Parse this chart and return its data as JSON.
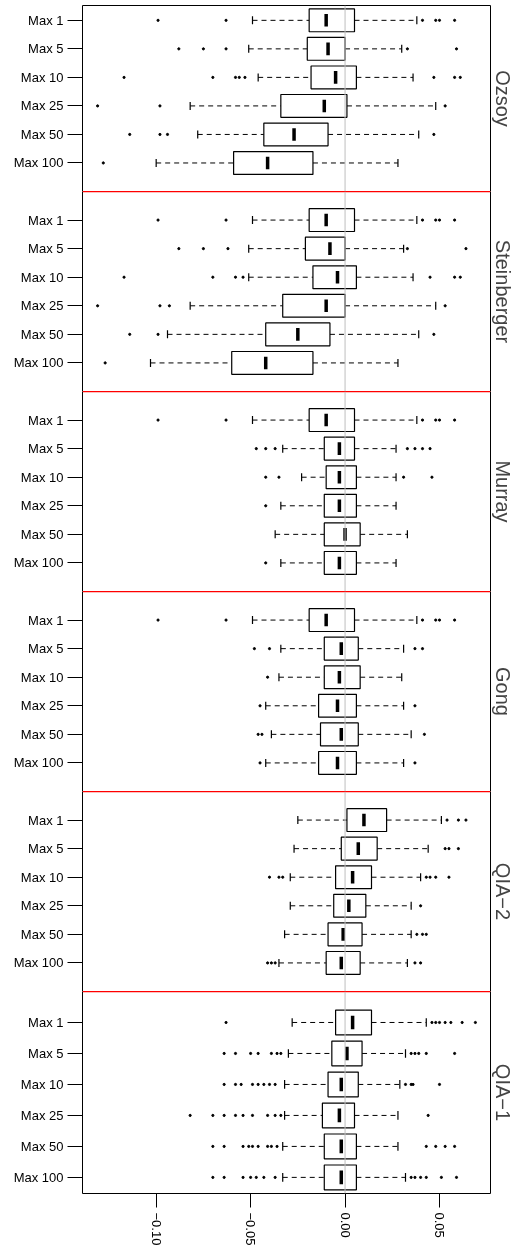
{
  "chart_data": [
    {
      "type": "box",
      "orientation": "horizontal",
      "title": "Ozsoy",
      "categories": [
        "Max 1",
        "Max 5",
        "Max 10",
        "Max 25",
        "Max 50",
        "Max 100"
      ],
      "xlim": [
        -0.139,
        0.077
      ],
      "tick_labels": "y",
      "ref_lines": [
        {
          "axis": "x",
          "value": 0,
          "color": "#bebebe"
        }
      ],
      "boxes": [
        {
          "low": -0.049,
          "q1": -0.019,
          "median": -0.01,
          "q3": 0.005,
          "high": 0.038,
          "outliers": [
            -0.099,
            -0.063,
            0.041,
            0.048,
            0.05,
            0.058
          ]
        },
        {
          "low": -0.051,
          "q1": -0.02,
          "median": -0.009,
          "q3": 0.0,
          "high": 0.03,
          "outliers": [
            -0.088,
            -0.075,
            -0.063,
            0.033,
            0.059
          ]
        },
        {
          "low": -0.046,
          "q1": -0.018,
          "median": -0.005,
          "q3": 0.006,
          "high": 0.036,
          "outliers": [
            -0.117,
            -0.07,
            -0.058,
            -0.056,
            -0.053,
            0.047,
            0.058,
            0.061
          ]
        },
        {
          "low": -0.082,
          "q1": -0.034,
          "median": -0.011,
          "q3": 0.001,
          "high": 0.048,
          "outliers": [
            -0.131,
            -0.098,
            0.053
          ]
        },
        {
          "low": -0.078,
          "q1": -0.043,
          "median": -0.027,
          "q3": -0.009,
          "high": 0.039,
          "outliers": [
            -0.114,
            -0.098,
            -0.094,
            0.047
          ]
        },
        {
          "low": -0.1,
          "q1": -0.059,
          "median": -0.041,
          "q3": -0.017,
          "high": 0.028,
          "outliers": [
            -0.128
          ]
        }
      ]
    },
    {
      "type": "box",
      "orientation": "horizontal",
      "title": "Steinberger",
      "categories": [
        "Max 1",
        "Max 5",
        "Max 10",
        "Max 25",
        "Max 50",
        "Max 100"
      ],
      "xlim": [
        -0.139,
        0.077
      ],
      "tick_labels": "y",
      "ref_lines": [
        {
          "axis": "x",
          "value": 0,
          "color": "#bebebe"
        }
      ],
      "boxes": [
        {
          "low": -0.049,
          "q1": -0.019,
          "median": -0.01,
          "q3": 0.005,
          "high": 0.038,
          "outliers": [
            -0.099,
            -0.063,
            0.041,
            0.048,
            0.05,
            0.058
          ]
        },
        {
          "low": -0.051,
          "q1": -0.021,
          "median": -0.008,
          "q3": 0.0,
          "high": 0.031,
          "outliers": [
            -0.088,
            -0.075,
            -0.062,
            0.033,
            0.064
          ]
        },
        {
          "low": -0.051,
          "q1": -0.017,
          "median": -0.004,
          "q3": 0.006,
          "high": 0.036,
          "outliers": [
            -0.117,
            -0.07,
            -0.058,
            -0.054,
            0.045,
            0.058,
            0.061
          ]
        },
        {
          "low": -0.082,
          "q1": -0.033,
          "median": -0.01,
          "q3": 0.0,
          "high": 0.048,
          "outliers": [
            -0.131,
            -0.098,
            -0.093,
            0.053
          ]
        },
        {
          "low": -0.094,
          "q1": -0.042,
          "median": -0.025,
          "q3": -0.008,
          "high": 0.039,
          "outliers": [
            -0.114,
            -0.099,
            0.047
          ]
        },
        {
          "low": -0.103,
          "q1": -0.06,
          "median": -0.042,
          "q3": -0.017,
          "high": 0.028,
          "outliers": [
            -0.127
          ]
        }
      ]
    },
    {
      "type": "box",
      "orientation": "horizontal",
      "title": "Murray",
      "categories": [
        "Max 1",
        "Max 5",
        "Max 10",
        "Max 25",
        "Max 50",
        "Max 100"
      ],
      "xlim": [
        -0.139,
        0.077
      ],
      "tick_labels": "y",
      "ref_lines": [
        {
          "axis": "x",
          "value": 0,
          "color": "#bebebe"
        }
      ],
      "boxes": [
        {
          "low": -0.049,
          "q1": -0.019,
          "median": -0.01,
          "q3": 0.005,
          "high": 0.038,
          "outliers": [
            -0.099,
            -0.063,
            0.041,
            0.048,
            0.05,
            0.058
          ]
        },
        {
          "low": -0.033,
          "q1": -0.011,
          "median": -0.003,
          "q3": 0.005,
          "high": 0.027,
          "outliers": [
            -0.047,
            -0.042,
            -0.037,
            0.033,
            0.037,
            0.041,
            0.045
          ]
        },
        {
          "low": -0.023,
          "q1": -0.01,
          "median": -0.003,
          "q3": 0.006,
          "high": 0.027,
          "outliers": [
            -0.042,
            -0.035,
            0.031,
            0.046
          ]
        },
        {
          "low": -0.034,
          "q1": -0.011,
          "median": -0.003,
          "q3": 0.006,
          "high": 0.027,
          "outliers": [
            -0.042
          ]
        },
        {
          "low": -0.037,
          "q1": -0.011,
          "median": 0.0,
          "q3": 0.008,
          "high": 0.033
        },
        {
          "low": -0.034,
          "q1": -0.011,
          "median": -0.003,
          "q3": 0.006,
          "high": 0.027,
          "outliers": [
            -0.042
          ]
        }
      ]
    },
    {
      "type": "box",
      "orientation": "horizontal",
      "title": "Gong",
      "categories": [
        "Max 1",
        "Max 5",
        "Max 10",
        "Max 25",
        "Max 50",
        "Max 100"
      ],
      "xlim": [
        -0.139,
        0.077
      ],
      "tick_labels": "y",
      "ref_lines": [
        {
          "axis": "x",
          "value": 0,
          "color": "#bebebe"
        }
      ],
      "boxes": [
        {
          "low": -0.049,
          "q1": -0.019,
          "median": -0.01,
          "q3": 0.005,
          "high": 0.038,
          "outliers": [
            -0.099,
            -0.063,
            0.041,
            0.048,
            0.05,
            0.058
          ]
        },
        {
          "low": -0.034,
          "q1": -0.011,
          "median": -0.002,
          "q3": 0.007,
          "high": 0.031,
          "outliers": [
            -0.048,
            -0.04,
            0.037,
            0.041
          ]
        },
        {
          "low": -0.035,
          "q1": -0.011,
          "median": -0.003,
          "q3": 0.008,
          "high": 0.03,
          "outliers": [
            -0.041
          ]
        },
        {
          "low": -0.042,
          "q1": -0.014,
          "median": -0.004,
          "q3": 0.006,
          "high": 0.031,
          "outliers": [
            -0.045,
            0.037
          ]
        },
        {
          "low": -0.039,
          "q1": -0.013,
          "median": -0.002,
          "q3": 0.007,
          "high": 0.035,
          "outliers": [
            -0.046,
            -0.044,
            0.042
          ]
        },
        {
          "low": -0.042,
          "q1": -0.014,
          "median": -0.004,
          "q3": 0.006,
          "high": 0.031,
          "outliers": [
            -0.045,
            0.037
          ]
        }
      ]
    },
    {
      "type": "box",
      "orientation": "horizontal",
      "title": "QIA−2",
      "categories": [
        "Max 1",
        "Max 5",
        "Max 10",
        "Max 25",
        "Max 50",
        "Max 100"
      ],
      "xlim": [
        -0.139,
        0.077
      ],
      "tick_labels": "y",
      "ref_lines": [
        {
          "axis": "x",
          "value": 0,
          "color": "#bebebe"
        }
      ],
      "boxes": [
        {
          "low": -0.025,
          "q1": 0.001,
          "median": 0.01,
          "q3": 0.022,
          "high": 0.051,
          "outliers": [
            0.054,
            0.06,
            0.064
          ]
        },
        {
          "low": -0.027,
          "q1": -0.002,
          "median": 0.007,
          "q3": 0.017,
          "high": 0.044,
          "outliers": [
            0.053,
            0.055,
            0.06
          ]
        },
        {
          "low": -0.029,
          "q1": -0.005,
          "median": 0.004,
          "q3": 0.014,
          "high": 0.04,
          "outliers": [
            -0.04,
            -0.035,
            -0.033,
            0.043,
            0.045,
            0.048,
            0.055
          ]
        },
        {
          "low": -0.029,
          "q1": -0.006,
          "median": 0.002,
          "q3": 0.011,
          "high": 0.035,
          "outliers": [
            0.04
          ]
        },
        {
          "low": -0.032,
          "q1": -0.009,
          "median": -0.001,
          "q3": 0.009,
          "high": 0.035,
          "outliers": [
            0.038,
            0.041,
            0.043
          ]
        },
        {
          "low": -0.035,
          "q1": -0.01,
          "median": -0.002,
          "q3": 0.008,
          "high": 0.033,
          "outliers": [
            -0.041,
            -0.039,
            -0.037,
            0.037,
            0.04
          ]
        }
      ]
    },
    {
      "type": "box",
      "orientation": "horizontal",
      "title": "QIA−1",
      "categories": [
        "Max 1",
        "Max 5",
        "Max 10",
        "Max 25",
        "Max 50",
        "Max 100"
      ],
      "xlim": [
        -0.139,
        0.077
      ],
      "xticks": [
        {
          "value": -0.1,
          "label": "−0.10"
        },
        {
          "value": -0.05,
          "label": "−0.05"
        },
        {
          "value": 0,
          "label": "0.00"
        },
        {
          "value": 0.05,
          "label": "0.05"
        }
      ],
      "ref_lines": [
        {
          "axis": "x",
          "value": 0,
          "color": "#bebebe"
        }
      ],
      "boxes": [
        {
          "low": -0.028,
          "q1": -0.005,
          "median": 0.004,
          "q3": 0.014,
          "high": 0.043,
          "outliers": [
            -0.063,
            0.046,
            0.048,
            0.05,
            0.053,
            0.056,
            0.062,
            0.069
          ]
        },
        {
          "low": -0.03,
          "q1": -0.007,
          "median": 0.001,
          "q3": 0.009,
          "high": 0.032,
          "outliers": [
            -0.064,
            -0.058,
            -0.05,
            -0.046,
            -0.039,
            -0.036,
            -0.034,
            0.035,
            0.037,
            0.039,
            0.043,
            0.058
          ]
        },
        {
          "low": -0.032,
          "q1": -0.009,
          "median": -0.002,
          "q3": 0.007,
          "high": 0.029,
          "outliers": [
            -0.064,
            -0.058,
            -0.055,
            -0.049,
            -0.046,
            -0.043,
            -0.04,
            -0.037,
            0.032,
            0.035,
            0.036,
            0.05
          ]
        },
        {
          "low": -0.032,
          "q1": -0.012,
          "median": -0.003,
          "q3": 0.005,
          "high": 0.028,
          "outliers": [
            -0.082,
            -0.07,
            -0.064,
            -0.058,
            -0.054,
            -0.049,
            -0.041,
            -0.037,
            -0.034,
            0.044
          ]
        },
        {
          "low": -0.033,
          "q1": -0.011,
          "median": -0.002,
          "q3": 0.006,
          "high": 0.028,
          "outliers": [
            -0.07,
            -0.064,
            -0.054,
            -0.051,
            -0.049,
            -0.046,
            -0.041,
            -0.039,
            -0.036,
            0.043,
            0.048,
            0.053,
            0.058
          ]
        },
        {
          "low": -0.033,
          "q1": -0.011,
          "median": -0.002,
          "q3": 0.006,
          "high": 0.032,
          "outliers": [
            -0.07,
            -0.064,
            -0.054,
            -0.05,
            -0.047,
            -0.043,
            -0.037,
            0.035,
            0.037,
            0.04,
            0.043,
            0.051,
            0.059
          ]
        }
      ]
    }
  ]
}
